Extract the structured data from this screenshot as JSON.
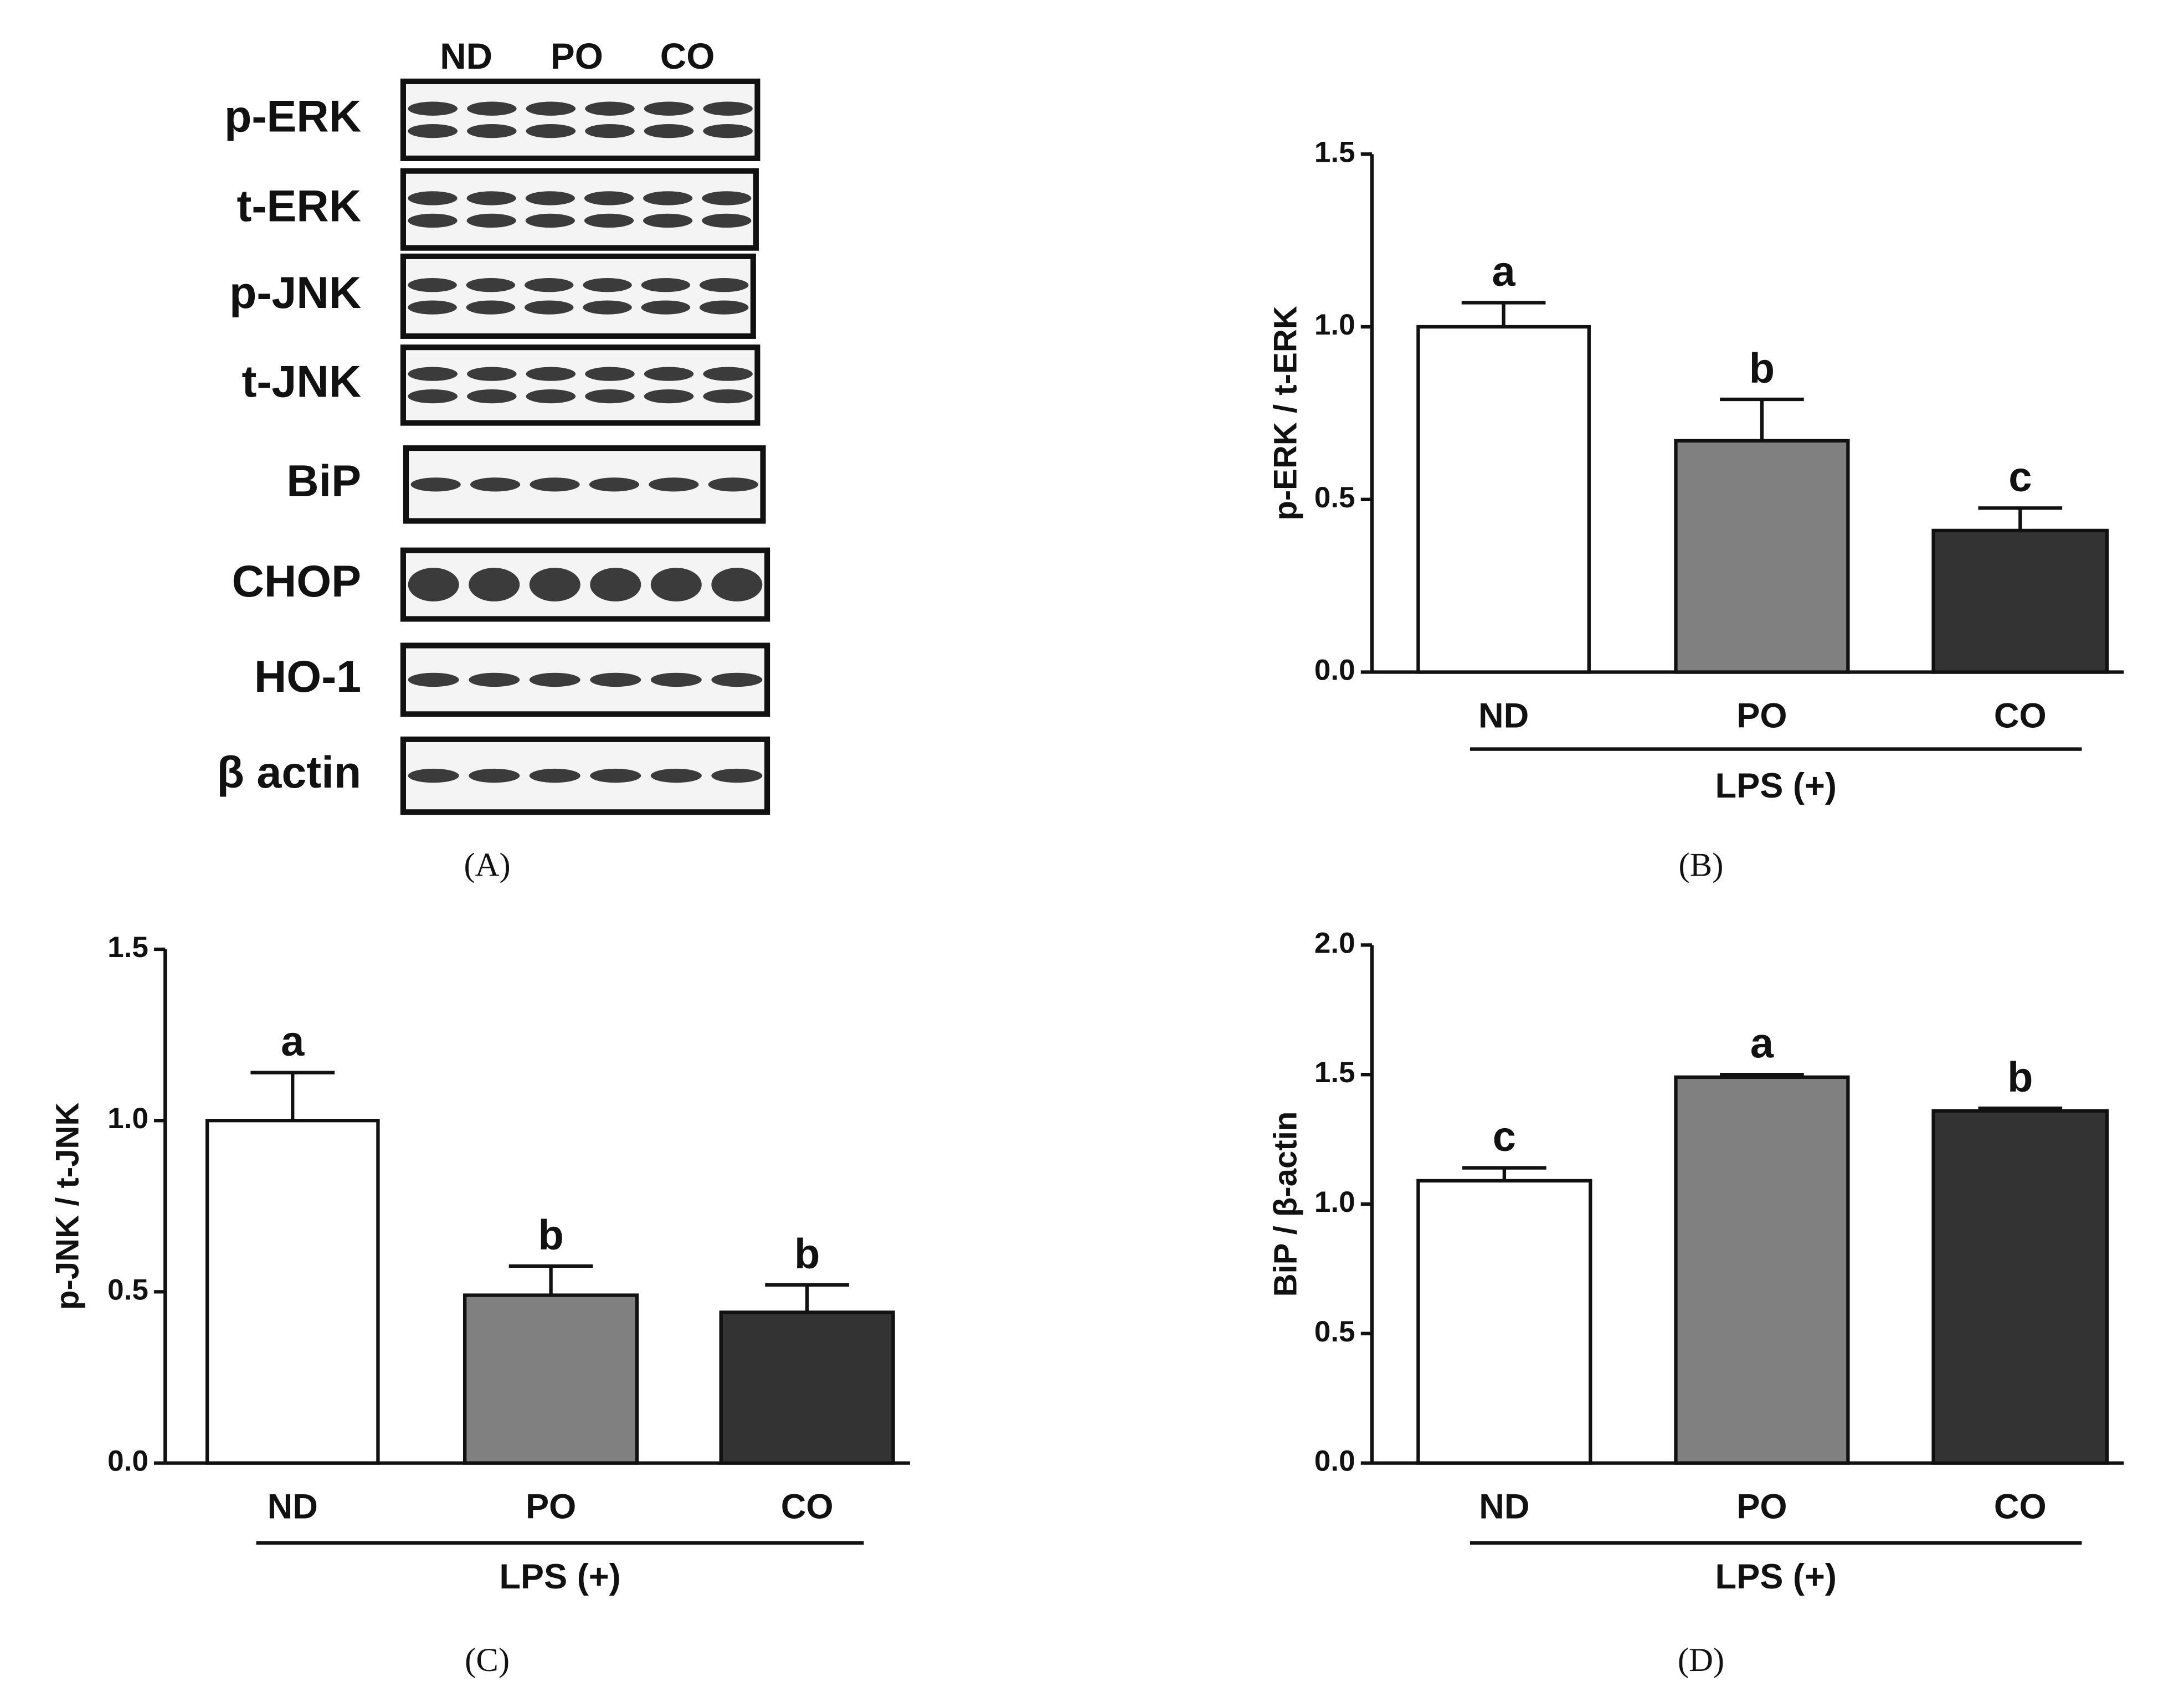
{
  "blot": {
    "panel": "(A)",
    "lanes": [
      "ND",
      "PO",
      "CO"
    ],
    "rows": [
      "p-ERK",
      "t-ERK",
      "p-JNK",
      "t-JNK",
      "BiP",
      "CHOP",
      "HO-1",
      "β actin"
    ]
  },
  "chart_data": [
    {
      "type": "bar",
      "panel": "(B)",
      "ylabel": "p-ERK / t-ERK",
      "group_label": "LPS (+)",
      "categories": [
        "ND",
        "PO",
        "CO"
      ],
      "values": [
        1.0,
        0.67,
        0.41
      ],
      "errors": [
        0.07,
        0.12,
        0.065
      ],
      "annotations": [
        "a",
        "b",
        "c"
      ],
      "colors": [
        "#ffffff",
        "#808080",
        "#333333"
      ],
      "ylim": [
        0,
        1.5
      ],
      "yticks": [
        {
          "value": 0,
          "label": "0.0"
        },
        0.5,
        {
          "value": 1,
          "label": "1.0"
        },
        1.5
      ]
    },
    {
      "type": "bar",
      "panel": "(C)",
      "ylabel": "p-JNK / t-JNK",
      "group_label": "LPS (+)",
      "categories": [
        "ND",
        "PO",
        "CO"
      ],
      "values": [
        1.0,
        0.49,
        0.44
      ],
      "errors": [
        0.14,
        0.085,
        0.08
      ],
      "annotations": [
        "a",
        "b",
        "b"
      ],
      "colors": [
        "#ffffff",
        "#808080",
        "#333333"
      ],
      "ylim": [
        0,
        1.5
      ],
      "yticks": [
        {
          "value": 0,
          "label": "0.0"
        },
        0.5,
        {
          "value": 1,
          "label": "1.0"
        },
        1.5
      ]
    },
    {
      "type": "bar",
      "panel": "(D)",
      "ylabel": "BiP / β-actin",
      "group_label": "LPS (+)",
      "categories": [
        "ND",
        "PO",
        "CO"
      ],
      "values": [
        1.09,
        1.49,
        1.36
      ],
      "errors": [
        0.05,
        0.01,
        0.01
      ],
      "annotations": [
        "c",
        "a",
        "b"
      ],
      "colors": [
        "#ffffff",
        "#808080",
        "#333333"
      ],
      "ylim": [
        0,
        2
      ],
      "yticks": [
        {
          "value": 0,
          "label": "0.0"
        },
        0.5,
        {
          "value": 1,
          "label": "1.0"
        },
        1.5,
        {
          "value": 2,
          "label": "2.0"
        }
      ]
    }
  ]
}
